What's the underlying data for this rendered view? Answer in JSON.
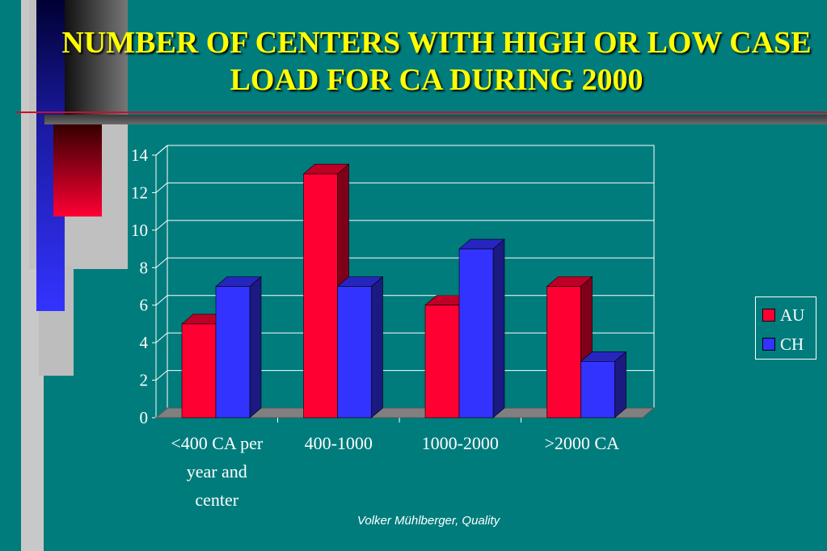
{
  "slide": {
    "title": "NUMBER OF CENTERS WITH HIGH OR LOW CASE  LOAD FOR CA DURING 2000",
    "footer": "Volker Mühlberger, Quality"
  },
  "colors": {
    "background": "#007c7c",
    "title": "#ffff00",
    "au": "#ff0033",
    "ch": "#3333ff"
  },
  "chart_data": {
    "type": "bar",
    "categories": [
      [
        "<400 CA per",
        "year and",
        "center"
      ],
      [
        "400-1000"
      ],
      [
        "1000-2000"
      ],
      [
        ">2000 CA"
      ]
    ],
    "series": [
      {
        "name": "AU",
        "values": [
          5,
          13,
          6,
          7
        ],
        "color": "#ff0033"
      },
      {
        "name": "CH",
        "values": [
          7,
          7,
          9,
          3
        ],
        "color": "#3333ff"
      }
    ],
    "ylim": [
      0,
      14
    ],
    "yticks": [
      "0",
      "2",
      "4",
      "6",
      "8",
      "10",
      "12",
      "14"
    ],
    "grid": true,
    "legend": "right",
    "title": "",
    "xlabel": "",
    "ylabel": ""
  }
}
